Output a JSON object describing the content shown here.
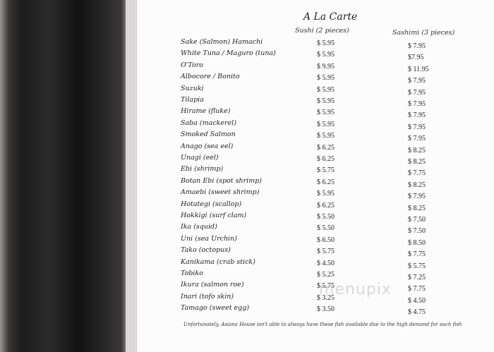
{
  "title": "A La Carte",
  "columns": {
    "sushi": "Sushi (2 pieces)",
    "sashimi": "Sashimi (3 pieces)"
  },
  "items": [
    {
      "name": "Sake (Salmon)  Hamachi",
      "sushi": "$ 5.95",
      "sashimi": "$ 7.95"
    },
    {
      "name": "White Tuna / Maguro (tuna)",
      "sushi": "$ 5.95",
      "sashimi": "$7.95"
    },
    {
      "name": "O'Toro",
      "sushi": "$ 9.95",
      "sashimi": "$ 11.95"
    },
    {
      "name": "Albocore / Bonito",
      "sushi": "$ 5.95",
      "sashimi": "$ 7.95"
    },
    {
      "name": "Suzuki",
      "sushi": "$ 5.95",
      "sashimi": "$ 7.95"
    },
    {
      "name": "Tilapia",
      "sushi": "$ 5.95",
      "sashimi": "$ 7.95"
    },
    {
      "name": "Hirame (fluke)",
      "sushi": "$ 5.95",
      "sashimi": "$ 7.95"
    },
    {
      "name": "Saba (mackerel)",
      "sushi": "$ 5.95",
      "sashimi": "$ 7.95"
    },
    {
      "name": "Smoked Salmon",
      "sushi": "$ 5.95",
      "sashimi": "$ 7.95"
    },
    {
      "name": "Anago (sea eel)",
      "sushi": "$ 6.25",
      "sashimi": "$ 8.25"
    },
    {
      "name": "Unagi (eel)",
      "sushi": "$ 6.25",
      "sashimi": "$ 8.25"
    },
    {
      "name": "Ebi (shrimp)",
      "sushi": "$ 5.75",
      "sashimi": "$ 7.75"
    },
    {
      "name": "Botan Ebi (spot shrimp)",
      "sushi": "$ 6.25",
      "sashimi": "$ 8.25"
    },
    {
      "name": "Amaebi (sweet shrimp)",
      "sushi": "$ 5.95",
      "sashimi": "$ 7.95"
    },
    {
      "name": "Hotategi (scallop)",
      "sushi": "$ 6.25",
      "sashimi": "$ 8.25"
    },
    {
      "name": "Hokkigi (surf clam)",
      "sushi": "$ 5.50",
      "sashimi": "$ 7.50"
    },
    {
      "name": "Ika (squid)",
      "sushi": "$ 5.50",
      "sashimi": "$ 7.50"
    },
    {
      "name": "Uni (sea Urchin)",
      "sushi": "$ 6.50",
      "sashimi": "$ 8.50"
    },
    {
      "name": "Tako (octopus)",
      "sushi": "$ 5.75",
      "sashimi": "$ 7.75"
    },
    {
      "name": "Kanikama (crab stick)",
      "sushi": "$ 4.50",
      "sashimi": "$ 5.75"
    },
    {
      "name": "Tobiko",
      "sushi": "$ 5.25",
      "sashimi": "$ 7.25"
    },
    {
      "name": "Ikura (salmon roe)",
      "sushi": "$ 5.75",
      "sashimi": "$ 7.75"
    },
    {
      "name": "Inari (tofo skin)",
      "sushi": "$ 3.25",
      "sashimi": "$ 4.50"
    },
    {
      "name": "Tamago (sweet egg)",
      "sushi": "$ 3.50",
      "sashimi": "$ 4.75"
    }
  ],
  "note": "Unfortunately, Asiana House isn't able to always have these fish available due to the high demand for such fish",
  "watermark": "menupix"
}
